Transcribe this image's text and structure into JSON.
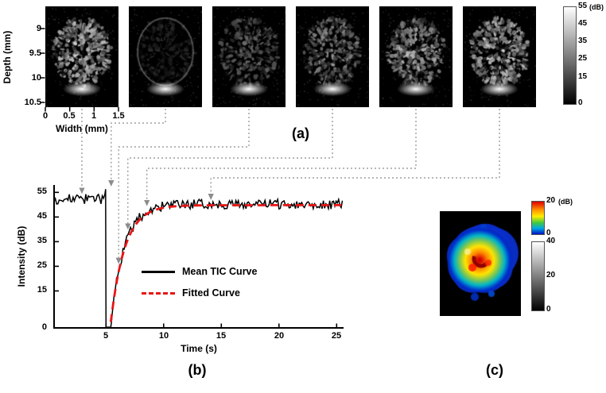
{
  "figure": {
    "panel_a": {
      "label": "(a)",
      "ylabel": "Depth (mm)",
      "yticks": [
        "9",
        "9.5",
        "10",
        "10.5"
      ],
      "xlabel": "Width (mm)",
      "xticks": [
        "0",
        "0.5",
        "1",
        "1.5"
      ],
      "frames": {
        "count": 6,
        "brightness": [
          1.0,
          0.22,
          0.52,
          0.72,
          0.88,
          1.0
        ],
        "arrow_targets": [
          {
            "time_s": 3.1,
            "intensity_db": 52.5
          },
          {
            "time_s": 5.45,
            "intensity_db": 55.5
          },
          {
            "time_s": 6.1,
            "intensity_db": 24.0
          },
          {
            "time_s": 6.9,
            "intensity_db": 38.0
          },
          {
            "time_s": 8.55,
            "intensity_db": 47.5
          },
          {
            "time_s": 14.1,
            "intensity_db": 50.0
          }
        ]
      },
      "colorbar": {
        "unit": "(dB)",
        "ticks": [
          "55",
          "45",
          "35",
          "25",
          "15",
          "0"
        ]
      }
    },
    "panel_b": {
      "label": "(b)"
    },
    "panel_c": {
      "label": "(c)",
      "colorbar": {
        "unit": "(dB)",
        "color_ticks": [
          "20",
          "0"
        ],
        "gray_ticks": [
          "40",
          "20",
          "0"
        ]
      }
    }
  },
  "chart_data": {
    "type": "line",
    "title": "",
    "xlabel": "Time (s)",
    "ylabel": "Intensity (dB)",
    "xlim": [
      0.5,
      25.6
    ],
    "ylim": [
      0,
      58
    ],
    "xticks": [
      5,
      10,
      15,
      20,
      25
    ],
    "yticks": [
      0,
      15,
      25,
      35,
      45,
      55
    ],
    "grid": false,
    "legend_position": "inside-left-middle",
    "series": [
      {
        "name": "Mean TIC Curve",
        "color": "#000000",
        "line_style": "solid",
        "model": {
          "baseline_db": 52.3,
          "noise_db": 2.0,
          "burst_start_s": 4.97,
          "burst_end_s": 5.42,
          "plateau_db": 50.2,
          "tau_s": 1.15
        }
      },
      {
        "name": "Fitted Curve",
        "color": "#e81515",
        "line_style": "dashed",
        "model": {
          "start_s": 5.42,
          "plateau_db": 49.8,
          "tau_s": 1.2
        }
      }
    ],
    "description": "Burst-replenishment time-intensity curve: noisy baseline ~52 dB from 0-5 s, destructive burst drops intensity to 0 dB at ~5 s, exponential replenishment recovers to ~50 dB plateau by ~10 s and remains until 25 s."
  }
}
